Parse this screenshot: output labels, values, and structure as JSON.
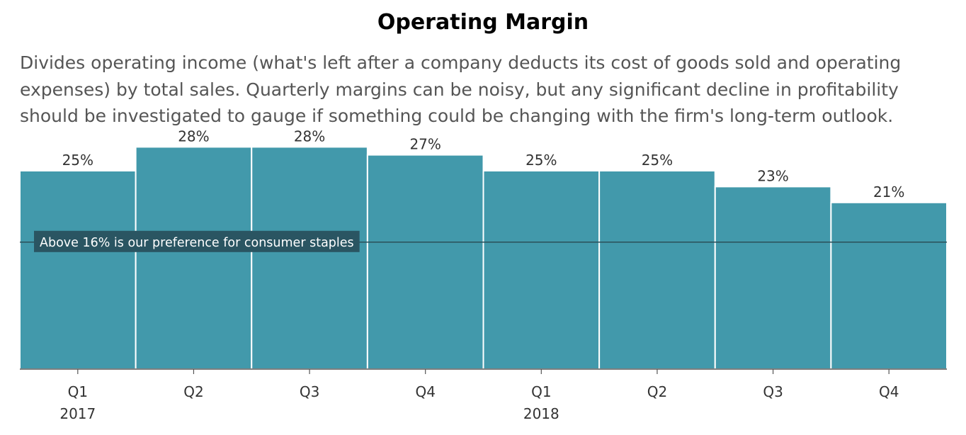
{
  "title": "Operating Margin",
  "subtitle": "Divides operating income (what's left after a company deducts its cost of goods sold and operating expenses) by total sales. Quarterly margins can be noisy, but any significant decline in profitability should be investigated to gauge if something could be changing with the firm's long-term outlook.",
  "chart_data": {
    "type": "bar",
    "categories": [
      "Q1",
      "Q2",
      "Q3",
      "Q4",
      "Q1",
      "Q2",
      "Q3",
      "Q4"
    ],
    "years": [
      {
        "label": "2017",
        "category_index": 0
      },
      {
        "label": "2018",
        "category_index": 4
      }
    ],
    "values": [
      25,
      28,
      28,
      27,
      25,
      25,
      23,
      21
    ],
    "data_labels": [
      "25%",
      "28%",
      "28%",
      "27%",
      "25%",
      "25%",
      "23%",
      "21%"
    ],
    "ylim": [
      0,
      30
    ],
    "reference_line": {
      "value": 16,
      "label": "Above 16% is our preference for consumer staples"
    },
    "colors": {
      "bar": "#4299ab",
      "reference_line": "#2a4f59",
      "reference_label_bg": "#2a5562",
      "axis": "#555555"
    }
  }
}
